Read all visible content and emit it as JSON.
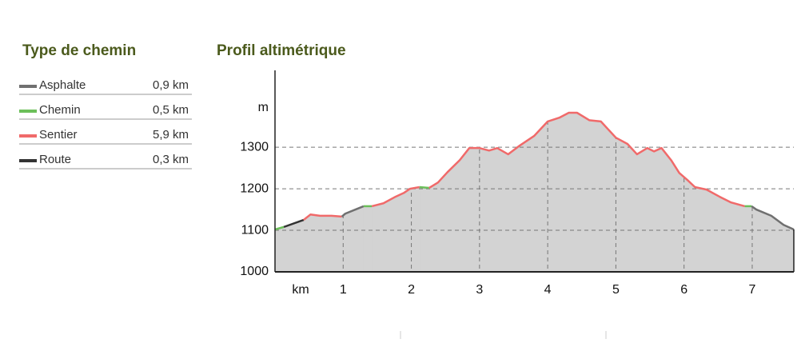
{
  "legend": {
    "title": "Type de chemin",
    "rows": [
      {
        "name": "Asphalte",
        "length": "0,9 km",
        "color": "#707070"
      },
      {
        "name": "Chemin",
        "length": "0,5 km",
        "color": "#6cbf5a"
      },
      {
        "name": "Sentier",
        "length": "5,9 km",
        "color": "#f06a6a"
      },
      {
        "name": "Route",
        "length": "0,3 km",
        "color": "#333333"
      }
    ]
  },
  "chart_data": {
    "type": "area",
    "title": "Profil altimétrique",
    "x_label": "km",
    "y_label": "m",
    "xlim": [
      0,
      7.61
    ],
    "ylim": [
      1000,
      1485
    ],
    "xticks": [
      1,
      2,
      3,
      4,
      5,
      6,
      7
    ],
    "yticks": [
      1000,
      1100,
      1200,
      1300
    ],
    "grid": true,
    "fill": "#d3d3d3",
    "series": [
      {
        "color": "#6cbf5a",
        "x": [
          0,
          0.13
        ],
        "values": [
          1102,
          1108
        ]
      },
      {
        "color": "#333333",
        "x": [
          0.13,
          0.42
        ],
        "values": [
          1108,
          1125
        ]
      },
      {
        "color": "#f06a6a",
        "x": [
          0.42,
          0.52,
          0.66,
          0.83,
          0.98
        ],
        "values": [
          1125,
          1138,
          1135,
          1135,
          1133
        ]
      },
      {
        "color": "#707070",
        "x": [
          0.98,
          1.03,
          1.18,
          1.3
        ],
        "values": [
          1133,
          1140,
          1150,
          1158
        ]
      },
      {
        "color": "#6cbf5a",
        "x": [
          1.3,
          1.42
        ],
        "values": [
          1158,
          1158
        ]
      },
      {
        "color": "#f06a6a",
        "x": [
          1.42,
          1.59,
          1.77,
          1.89,
          1.98,
          2.12
        ],
        "values": [
          1158,
          1165,
          1181,
          1190,
          1200,
          1204
        ]
      },
      {
        "color": "#6cbf5a",
        "x": [
          2.12,
          2.26
        ],
        "values": [
          1204,
          1202
        ]
      },
      {
        "color": "#f06a6a",
        "x": [
          2.26,
          2.39,
          2.53,
          2.71,
          2.85,
          3.0,
          3.14,
          3.26,
          3.42,
          3.59,
          3.8,
          4.0,
          4.17,
          4.31,
          4.43,
          4.61,
          4.78,
          5.0,
          5.17,
          5.31,
          5.46,
          5.56,
          5.67,
          5.81,
          5.93,
          6.05,
          6.16,
          6.33,
          6.52,
          6.69,
          6.89
        ],
        "values": [
          1202,
          1215,
          1240,
          1269,
          1298,
          1298,
          1292,
          1298,
          1283,
          1304,
          1327,
          1362,
          1371,
          1383,
          1383,
          1365,
          1362,
          1323,
          1308,
          1283,
          1298,
          1290,
          1298,
          1269,
          1238,
          1221,
          1204,
          1198,
          1181,
          1167,
          1158
        ]
      },
      {
        "color": "#6cbf5a",
        "x": [
          6.89,
          6.99
        ],
        "values": [
          1158,
          1158
        ]
      },
      {
        "color": "#707070",
        "x": [
          6.99,
          7.06,
          7.28,
          7.46,
          7.61
        ],
        "values": [
          1158,
          1150,
          1135,
          1113,
          1102
        ]
      }
    ]
  }
}
